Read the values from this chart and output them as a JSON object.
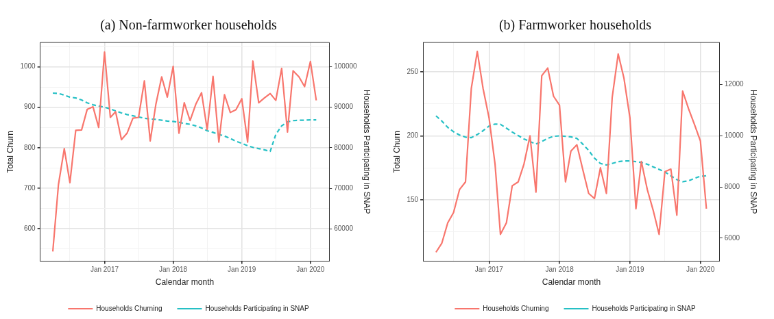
{
  "chart_data": [
    {
      "type": "line",
      "title": "(a) Non-farmworker households",
      "xlabel": "Calendar month",
      "ylabel": "Total Churn",
      "y2label": "Households Participating in SNAP",
      "legend": "bottom",
      "grid": true,
      "marker": "none",
      "x": [
        "2016-04",
        "2016-05",
        "2016-06",
        "2016-07",
        "2016-08",
        "2016-09",
        "2016-10",
        "2016-11",
        "2016-12",
        "2017-01",
        "2017-02",
        "2017-03",
        "2017-04",
        "2017-05",
        "2017-06",
        "2017-07",
        "2017-08",
        "2017-09",
        "2017-10",
        "2017-11",
        "2017-12",
        "2018-01",
        "2018-02",
        "2018-03",
        "2018-04",
        "2018-05",
        "2018-06",
        "2018-07",
        "2018-08",
        "2018-09",
        "2018-10",
        "2018-11",
        "2018-12",
        "2019-01",
        "2019-02",
        "2019-03",
        "2019-04",
        "2019-05",
        "2019-06",
        "2019-07",
        "2019-08",
        "2019-09",
        "2019-10",
        "2019-11",
        "2019-12",
        "2020-01",
        "2020-02"
      ],
      "xlim": [
        "2016-01-25",
        "2020-04-10"
      ],
      "xticks": [
        {
          "value": "2016-07",
          "label": null
        },
        {
          "value": "2017-01",
          "label": "Jan 2017"
        },
        {
          "value": "2017-07",
          "label": null
        },
        {
          "value": "2018-01",
          "label": "Jan 2018"
        },
        {
          "value": "2018-07",
          "label": null
        },
        {
          "value": "2019-01",
          "label": "Jan 2019"
        },
        {
          "value": "2019-07",
          "label": null
        },
        {
          "value": "2020-01",
          "label": "Jan 2020"
        }
      ],
      "ylim": [
        520,
        1060
      ],
      "yticks": [
        {
          "value": 550,
          "label": null
        },
        600,
        {
          "value": 650,
          "label": null
        },
        700,
        {
          "value": 750,
          "label": null
        },
        800,
        {
          "value": 850,
          "label": null
        },
        900,
        {
          "value": 950,
          "label": null
        },
        1000,
        {
          "value": 1050,
          "label": null
        }
      ],
      "y2lim": [
        52000,
        106000
      ],
      "y2ticks": [
        60000,
        70000,
        80000,
        90000,
        100000
      ],
      "series": [
        {
          "name": "Households Churning",
          "color": "#f8766d",
          "line_style": "solid",
          "values": [
            544,
            709,
            798,
            714,
            843,
            844,
            895,
            901,
            850,
            1036,
            875,
            889,
            820,
            836,
            873,
            875,
            965,
            817,
            907,
            975,
            925,
            1001,
            836,
            911,
            867,
            907,
            936,
            845,
            976,
            814,
            931,
            887,
            894,
            921,
            814,
            1014,
            911,
            923,
            934,
            917,
            996,
            839,
            990,
            975,
            951,
            1013,
            917
          ]
        },
        {
          "name": "Households Participating in SNAP",
          "color": "#26c0c5",
          "line_style": "dashed",
          "axis": "y2",
          "values": [
            93500,
            93400,
            93000,
            92500,
            92300,
            91800,
            91100,
            90600,
            90300,
            90000,
            89600,
            89100,
            88600,
            88200,
            87900,
            87600,
            87300,
            87100,
            87000,
            86800,
            86600,
            86500,
            86300,
            86000,
            85800,
            85400,
            84900,
            84200,
            83800,
            83300,
            82900,
            82300,
            81600,
            81100,
            80500,
            80100,
            79800,
            79500,
            79100,
            83300,
            85400,
            86400,
            86700,
            86800,
            86800,
            86900,
            86900
          ]
        }
      ]
    },
    {
      "type": "line",
      "title": "(b) Farmworker households",
      "xlabel": "Calendar month",
      "ylabel": "Total Churn",
      "y2label": "Households Participating in SNAP",
      "legend": "bottom",
      "grid": true,
      "marker": "none",
      "x": [
        "2016-04",
        "2016-05",
        "2016-06",
        "2016-07",
        "2016-08",
        "2016-09",
        "2016-10",
        "2016-11",
        "2016-12",
        "2017-01",
        "2017-02",
        "2017-03",
        "2017-04",
        "2017-05",
        "2017-06",
        "2017-07",
        "2017-08",
        "2017-09",
        "2017-10",
        "2017-11",
        "2017-12",
        "2018-01",
        "2018-02",
        "2018-03",
        "2018-04",
        "2018-05",
        "2018-06",
        "2018-07",
        "2018-08",
        "2018-09",
        "2018-10",
        "2018-11",
        "2018-12",
        "2019-01",
        "2019-02",
        "2019-03",
        "2019-04",
        "2019-05",
        "2019-06",
        "2019-07",
        "2019-08",
        "2019-09",
        "2019-10",
        "2019-11",
        "2019-12",
        "2020-01",
        "2020-02"
      ],
      "xlim": [
        "2016-01-25",
        "2020-04-10"
      ],
      "xticks": [
        {
          "value": "2016-07",
          "label": null
        },
        {
          "value": "2017-01",
          "label": "Jan 2017"
        },
        {
          "value": "2017-07",
          "label": null
        },
        {
          "value": "2018-01",
          "label": "Jan 2018"
        },
        {
          "value": "2018-07",
          "label": null
        },
        {
          "value": "2019-01",
          "label": "Jan 2019"
        },
        {
          "value": "2019-07",
          "label": null
        },
        {
          "value": "2020-01",
          "label": "Jan 2020"
        }
      ],
      "ylim": [
        102,
        273
      ],
      "yticks": [
        {
          "value": 125,
          "label": null
        },
        150,
        {
          "value": 175,
          "label": null
        },
        200,
        {
          "value": 225,
          "label": null
        },
        250
      ],
      "y2lim": [
        5100,
        13650
      ],
      "y2ticks": [
        6000,
        8000,
        10000,
        12000
      ],
      "series": [
        {
          "name": "Households Churning",
          "color": "#f8766d",
          "line_style": "solid",
          "values": [
            109,
            116,
            132,
            140,
            158,
            164,
            237,
            266,
            237,
            214,
            178,
            123,
            132,
            161,
            164,
            178,
            200,
            156,
            247,
            253,
            231,
            224,
            164,
            188,
            193,
            174,
            155,
            151,
            175,
            155,
            230,
            264,
            245,
            214,
            143,
            180,
            158,
            142,
            123,
            172,
            174,
            138,
            235,
            221,
            209,
            196,
            143
          ]
        },
        {
          "name": "Households Participating in SNAP",
          "color": "#26c0c5",
          "line_style": "dashed",
          "axis": "y2",
          "values": [
            10780,
            10580,
            10330,
            10160,
            10030,
            9950,
            9930,
            10050,
            10200,
            10380,
            10460,
            10450,
            10300,
            10150,
            10010,
            9880,
            9780,
            9680,
            9780,
            9900,
            9980,
            10000,
            9980,
            9960,
            9900,
            9680,
            9430,
            9130,
            8920,
            8860,
            8920,
            8990,
            9020,
            9020,
            8990,
            8960,
            8890,
            8790,
            8690,
            8590,
            8440,
            8290,
            8210,
            8240,
            8340,
            8420,
            8440
          ]
        }
      ]
    }
  ]
}
